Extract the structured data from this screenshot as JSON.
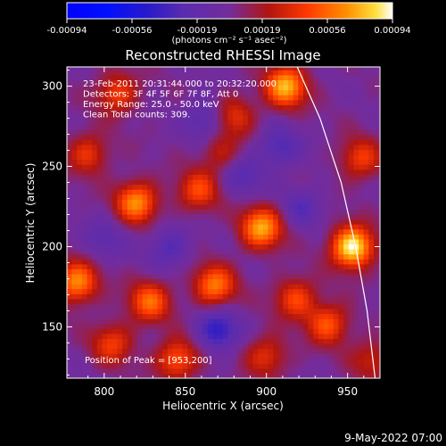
{
  "chart_data": {
    "type": "heatmap",
    "title": "Reconstructed RHESSI Image",
    "xlabel": "Heliocentric X (arcsec)",
    "ylabel": "Heliocentric Y (arcsec)",
    "xlim": [
      777,
      970
    ],
    "ylim": [
      118,
      312
    ],
    "xticks": [
      800,
      850,
      900,
      950
    ],
    "yticks": [
      150,
      200,
      250,
      300
    ],
    "colorbar": {
      "range": [
        -0.00094,
        0.00094
      ],
      "ticks": [
        "-0.00094",
        "-0.00056",
        "-0.00019",
        "0.00019",
        "0.00056",
        "0.00094"
      ],
      "units": "(photons cm⁻² s⁻¹ asec⁻²)"
    },
    "annotations": [
      "23-Feb-2011 20:31:44.000 to 20:32:20.000",
      "Detectors: 3F 4F 5F 6F 7F 8F, Att 0",
      "Energy Range: 25.0 - 50.0 keV",
      "Clean    Total counts: 309."
    ],
    "peak_label": "Position of Peak = [953,200]",
    "peak": [
      953,
      200
    ],
    "limb": [
      [
        919,
        312
      ],
      [
        933,
        280
      ],
      [
        946,
        240
      ],
      [
        955,
        200
      ],
      [
        962,
        160
      ],
      [
        967,
        118
      ]
    ],
    "sources": [
      {
        "x": 953,
        "y": 200,
        "v": 0.00094
      },
      {
        "x": 912,
        "y": 300,
        "v": 0.00075
      },
      {
        "x": 820,
        "y": 228,
        "v": 0.00066
      },
      {
        "x": 897,
        "y": 212,
        "v": 0.00072
      },
      {
        "x": 783,
        "y": 178,
        "v": 0.00066
      },
      {
        "x": 868,
        "y": 176,
        "v": 0.0006
      },
      {
        "x": 828,
        "y": 166,
        "v": 0.00055
      },
      {
        "x": 938,
        "y": 152,
        "v": 0.0005
      },
      {
        "x": 845,
        "y": 130,
        "v": 0.00052
      },
      {
        "x": 808,
        "y": 296,
        "v": 0.00044
      },
      {
        "x": 790,
        "y": 258,
        "v": 0.0004
      },
      {
        "x": 858,
        "y": 235,
        "v": 0.00045
      },
      {
        "x": 880,
        "y": 282,
        "v": 0.00038
      },
      {
        "x": 918,
        "y": 168,
        "v": 0.00046
      },
      {
        "x": 958,
        "y": 255,
        "v": 0.00042
      },
      {
        "x": 805,
        "y": 140,
        "v": 0.00042
      },
      {
        "x": 900,
        "y": 132,
        "v": 0.00038
      },
      {
        "x": 965,
        "y": 130,
        "v": 0.0003
      },
      {
        "x": 872,
        "y": 258,
        "v": 0.00028
      },
      {
        "x": 840,
        "y": 200,
        "v": -0.0003
      },
      {
        "x": 870,
        "y": 148,
        "v": -0.00045
      },
      {
        "x": 885,
        "y": 245,
        "v": -0.00028
      },
      {
        "x": 908,
        "y": 262,
        "v": -0.00032
      },
      {
        "x": 862,
        "y": 280,
        "v": -0.0003
      },
      {
        "x": 922,
        "y": 225,
        "v": -0.00025
      },
      {
        "x": 800,
        "y": 205,
        "v": -0.00022
      }
    ]
  },
  "footer": {
    "date": "9-May-2022 07:00"
  }
}
